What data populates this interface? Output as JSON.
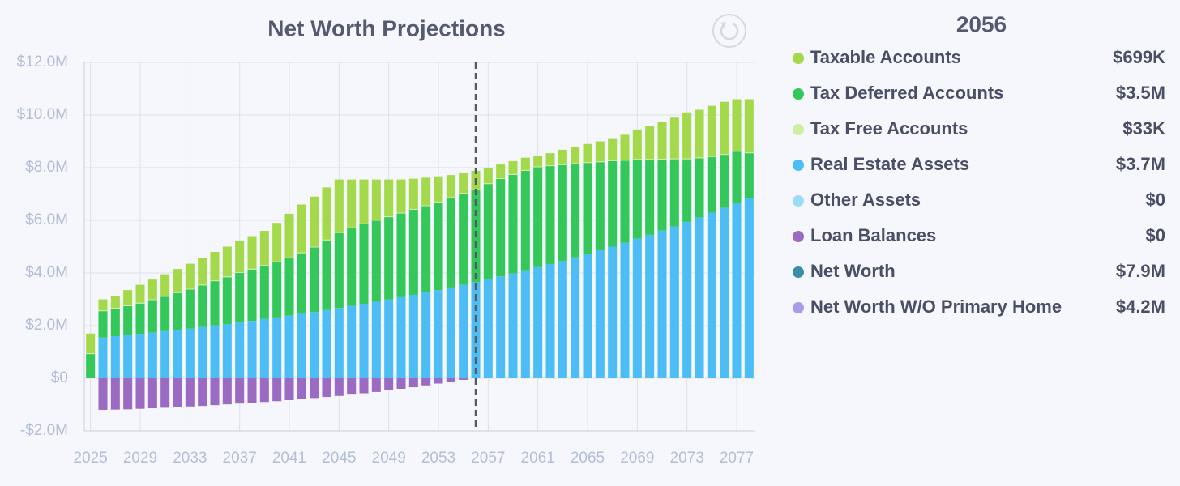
{
  "chart_data": {
    "type": "stacked_bar",
    "title": "Net Worth Projections",
    "x": [
      2025,
      2026,
      2027,
      2028,
      2029,
      2030,
      2031,
      2032,
      2033,
      2034,
      2035,
      2036,
      2037,
      2038,
      2039,
      2040,
      2041,
      2042,
      2043,
      2044,
      2045,
      2046,
      2047,
      2048,
      2049,
      2050,
      2051,
      2052,
      2053,
      2054,
      2055,
      2056,
      2057,
      2058,
      2059,
      2060,
      2061,
      2062,
      2063,
      2064,
      2065,
      2066,
      2067,
      2068,
      2069,
      2070,
      2071,
      2072,
      2073,
      2074,
      2075,
      2076,
      2077,
      2078
    ],
    "xlim": [
      2024.5,
      2078.5
    ],
    "xticks": [
      2025,
      2029,
      2033,
      2037,
      2041,
      2045,
      2049,
      2053,
      2057,
      2061,
      2065,
      2069,
      2073,
      2077
    ],
    "ylim": [
      -2,
      12
    ],
    "yticks": [
      {
        "value": -2,
        "label": "-$2.0M"
      },
      {
        "value": 0,
        "label": "$0"
      },
      {
        "value": 2,
        "label": "$2.0M"
      },
      {
        "value": 4,
        "label": "$4.0M"
      },
      {
        "value": 6,
        "label": "$6.0M"
      },
      {
        "value": 8,
        "label": "$8.0M"
      },
      {
        "value": 10,
        "label": "$10.0M"
      },
      {
        "value": 12,
        "label": "$12.0M"
      }
    ],
    "grid": true,
    "series": [
      {
        "name": "Real Estate Assets",
        "color": "#4dbef5",
        "values": [
          0,
          1.55,
          1.6,
          1.64,
          1.69,
          1.74,
          1.79,
          1.84,
          1.89,
          1.95,
          2.01,
          2.06,
          2.12,
          2.18,
          2.25,
          2.31,
          2.38,
          2.45,
          2.52,
          2.59,
          2.67,
          2.75,
          2.83,
          2.91,
          2.99,
          3.08,
          3.17,
          3.26,
          3.35,
          3.45,
          3.55,
          3.65,
          3.76,
          3.87,
          3.98,
          4.1,
          4.22,
          4.34,
          4.46,
          4.59,
          4.73,
          4.86,
          5.0,
          5.15,
          5.3,
          5.45,
          5.61,
          5.77,
          5.94,
          6.11,
          6.29,
          6.47,
          6.66,
          6.85
        ]
      },
      {
        "name": "Tax Deferred Accounts",
        "color": "#34c75a",
        "values": [
          0.92,
          1.0,
          1.05,
          1.1,
          1.15,
          1.23,
          1.31,
          1.4,
          1.48,
          1.58,
          1.68,
          1.78,
          1.88,
          1.95,
          2.02,
          2.1,
          2.18,
          2.3,
          2.45,
          2.65,
          2.85,
          2.95,
          3.02,
          3.08,
          3.13,
          3.18,
          3.23,
          3.28,
          3.33,
          3.4,
          3.46,
          3.5,
          3.62,
          3.7,
          3.75,
          3.78,
          3.8,
          3.72,
          3.64,
          3.55,
          3.45,
          3.35,
          3.25,
          3.12,
          3.0,
          2.85,
          2.7,
          2.55,
          2.38,
          2.25,
          2.12,
          2.02,
          1.95,
          1.7
        ]
      },
      {
        "name": "Tax Free Accounts",
        "color": "#cdf0a0",
        "values": [
          0.03,
          0.03,
          0.03,
          0.03,
          0.03,
          0.03,
          0.03,
          0.03,
          0.03,
          0.03,
          0.03,
          0.03,
          0.03,
          0.03,
          0.03,
          0.03,
          0.03,
          0.03,
          0.03,
          0.03,
          0.03,
          0.03,
          0.03,
          0.03,
          0.03,
          0.03,
          0.03,
          0.03,
          0.03,
          0.03,
          0.03,
          0.033,
          0.03,
          0.03,
          0.03,
          0.03,
          0.03,
          0.03,
          0.03,
          0.03,
          0.03,
          0.03,
          0.03,
          0.03,
          0.03,
          0.03,
          0.03,
          0.03,
          0.03,
          0.03,
          0.03,
          0.03,
          0.03,
          0.03
        ]
      },
      {
        "name": "Taxable Accounts",
        "color": "#a3d94a",
        "values": [
          0.75,
          0.42,
          0.44,
          0.58,
          0.68,
          0.75,
          0.82,
          0.88,
          0.95,
          1.02,
          1.08,
          1.13,
          1.17,
          1.24,
          1.3,
          1.46,
          1.66,
          1.82,
          1.9,
          1.98,
          2.0,
          1.82,
          1.67,
          1.53,
          1.4,
          1.26,
          1.15,
          1.05,
          0.96,
          0.84,
          0.76,
          0.699,
          0.59,
          0.52,
          0.49,
          0.47,
          0.4,
          0.46,
          0.55,
          0.63,
          0.69,
          0.76,
          0.84,
          0.95,
          1.12,
          1.27,
          1.41,
          1.55,
          1.75,
          1.81,
          1.91,
          1.98,
          1.96,
          2.02
        ]
      },
      {
        "name": "Loan Balances",
        "color": "#9b6bc4",
        "values": [
          0,
          -1.2,
          -1.19,
          -1.18,
          -1.16,
          -1.14,
          -1.12,
          -1.1,
          -1.07,
          -1.05,
          -1.02,
          -0.99,
          -0.96,
          -0.93,
          -0.9,
          -0.87,
          -0.83,
          -0.79,
          -0.75,
          -0.71,
          -0.67,
          -0.62,
          -0.57,
          -0.52,
          -0.46,
          -0.4,
          -0.34,
          -0.27,
          -0.2,
          -0.13,
          -0.06,
          0,
          0,
          0,
          0,
          0,
          0,
          0,
          0,
          0,
          0,
          0,
          0,
          0,
          0,
          0,
          0,
          0,
          0,
          0,
          0,
          0,
          0,
          0
        ]
      }
    ],
    "selection": {
      "x": 2056,
      "entries": [
        {
          "name": "Taxable Accounts",
          "color": "#a3d94a",
          "value": 0.699,
          "label": "$699K"
        },
        {
          "name": "Tax Deferred Accounts",
          "color": "#34c75a",
          "value": 3.5,
          "label": "$3.5M"
        },
        {
          "name": "Tax Free Accounts",
          "color": "#cdf0a0",
          "value": 0.033,
          "label": "$33K"
        },
        {
          "name": "Real Estate Assets",
          "color": "#4dbef5",
          "value": 3.7,
          "label": "$3.7M"
        },
        {
          "name": "Other Assets",
          "color": "#9ddcf7",
          "value": 0,
          "label": "$0"
        },
        {
          "name": "Loan Balances",
          "color": "#9b6bc4",
          "value": 0,
          "label": "$0"
        },
        {
          "name": "Net Worth",
          "color": "#3a8fa8",
          "value": 7.9,
          "label": "$7.9M"
        },
        {
          "name": "Net Worth W/O Primary Home",
          "color": "#a99be8",
          "value": 4.2,
          "label": "$4.2M"
        }
      ]
    }
  }
}
